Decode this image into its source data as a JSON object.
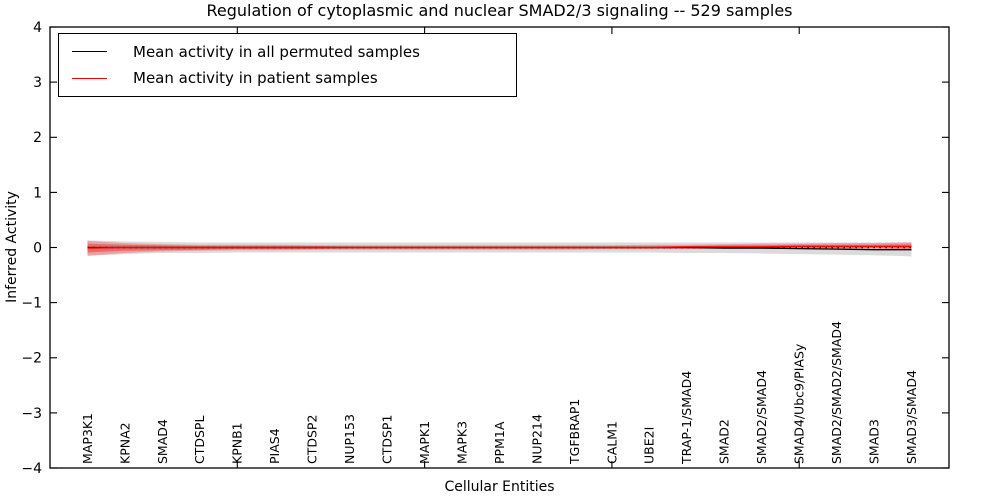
{
  "header": {
    "title": "Regulation of cytoplasmic and nuclear SMAD2/3 signaling -- 529 samples"
  },
  "axes": {
    "xlabel": "Cellular Entities",
    "ylabel": "Inferred Activity"
  },
  "legend": {
    "items": [
      {
        "label": "Mean activity in all permuted samples",
        "color": "#000000",
        "icon": "line-swatch"
      },
      {
        "label": "Mean activity in patient samples",
        "color": "#ff0000",
        "icon": "line-swatch"
      }
    ]
  },
  "chart_data": {
    "type": "line",
    "title": "Regulation of cytoplasmic and nuclear SMAD2/3 signaling -- 529 samples",
    "xlabel": "Cellular Entities",
    "ylabel": "Inferred Activity",
    "ylim": [
      -4,
      4
    ],
    "yticks": [
      4,
      3,
      2,
      1,
      0,
      -1,
      -2,
      -3,
      -4
    ],
    "xlim": [
      0,
      24
    ],
    "xtick_positions": [
      5,
      10,
      15,
      20
    ],
    "grid": false,
    "legend_position": "upper left",
    "zero_line": {
      "style": "dotted",
      "color": "#000000",
      "y": 0
    },
    "categories": [
      "MAP3K1",
      "KPNA2",
      "SMAD4",
      "CTDSPL",
      "KPNB1",
      "PIAS4",
      "CTDSP2",
      "NUP153",
      "CTDSP1",
      "MAPK1",
      "MAPK3",
      "PPM1A",
      "NUP214",
      "TGFBRAP1",
      "CALM1",
      "UBE2I",
      "TRAP-1/SMAD4",
      "SMAD2",
      "SMAD2/SMAD4",
      "SMAD4/Ubc9/PIASy",
      "SMAD2/SMAD2/SMAD4",
      "SMAD3",
      "SMAD3/SMAD4"
    ],
    "series": [
      {
        "name": "Mean activity in all permuted samples",
        "color": "#000000",
        "values": [
          0,
          0,
          0,
          0,
          0,
          0,
          0,
          0,
          0,
          0,
          0,
          0,
          0,
          0,
          0,
          0,
          0,
          -0.01,
          -0.01,
          -0.02,
          -0.03,
          -0.04,
          -0.04
        ]
      },
      {
        "name": "Mean activity in patient samples",
        "color": "#ff0000",
        "values": [
          -0.01,
          0,
          0,
          0,
          0,
          0,
          0,
          0,
          0,
          0,
          0,
          0,
          0,
          0,
          0,
          0,
          0.01,
          0.01,
          0.01,
          0.02,
          0.02,
          0.02,
          0.02
        ]
      }
    ],
    "bands": [
      {
        "name": "permuted-samples-std",
        "color": "#888888",
        "opacity": 0.3,
        "upper": [
          0.13,
          0.11,
          0.1,
          0.09,
          0.09,
          0.09,
          0.09,
          0.09,
          0.09,
          0.09,
          0.09,
          0.09,
          0.09,
          0.09,
          0.09,
          0.09,
          0.09,
          0.09,
          0.09,
          0.09,
          0.09,
          0.09,
          0.1
        ],
        "lower": [
          -0.15,
          -0.12,
          -0.1,
          -0.1,
          -0.09,
          -0.09,
          -0.09,
          -0.09,
          -0.09,
          -0.09,
          -0.09,
          -0.09,
          -0.09,
          -0.09,
          -0.09,
          -0.09,
          -0.1,
          -0.1,
          -0.11,
          -0.12,
          -0.13,
          -0.14,
          -0.16
        ]
      },
      {
        "name": "patient-samples-std-outer",
        "color": "#ff0000",
        "opacity": 0.25,
        "upper": [
          0.12,
          0.08,
          0.06,
          0.05,
          0.05,
          0.05,
          0.04,
          0.04,
          0.04,
          0.04,
          0.04,
          0.04,
          0.04,
          0.04,
          0.04,
          0.05,
          0.05,
          0.06,
          0.07,
          0.07,
          0.08,
          0.08,
          0.09
        ],
        "lower": [
          -0.15,
          -0.1,
          -0.07,
          -0.06,
          -0.05,
          -0.05,
          -0.04,
          -0.04,
          -0.04,
          -0.04,
          -0.04,
          -0.04,
          -0.04,
          -0.04,
          -0.03,
          -0.03,
          -0.03,
          -0.02,
          -0.02,
          -0.02,
          -0.02,
          -0.02,
          -0.04
        ]
      },
      {
        "name": "patient-samples-std-inner",
        "color": "#ff0000",
        "opacity": 0.35,
        "upper": [
          0.07,
          0.05,
          0.04,
          0.03,
          0.03,
          0.03,
          0.03,
          0.02,
          0.02,
          0.02,
          0.02,
          0.02,
          0.02,
          0.02,
          0.02,
          0.02,
          0.03,
          0.04,
          0.04,
          0.05,
          0.05,
          0.05,
          0.06
        ],
        "lower": [
          -0.09,
          -0.06,
          -0.05,
          -0.04,
          -0.03,
          -0.03,
          -0.03,
          -0.02,
          -0.02,
          -0.02,
          -0.02,
          -0.02,
          -0.02,
          -0.02,
          -0.02,
          -0.02,
          -0.02,
          -0.01,
          -0.01,
          -0.01,
          -0.01,
          -0.01,
          -0.02
        ]
      }
    ]
  }
}
